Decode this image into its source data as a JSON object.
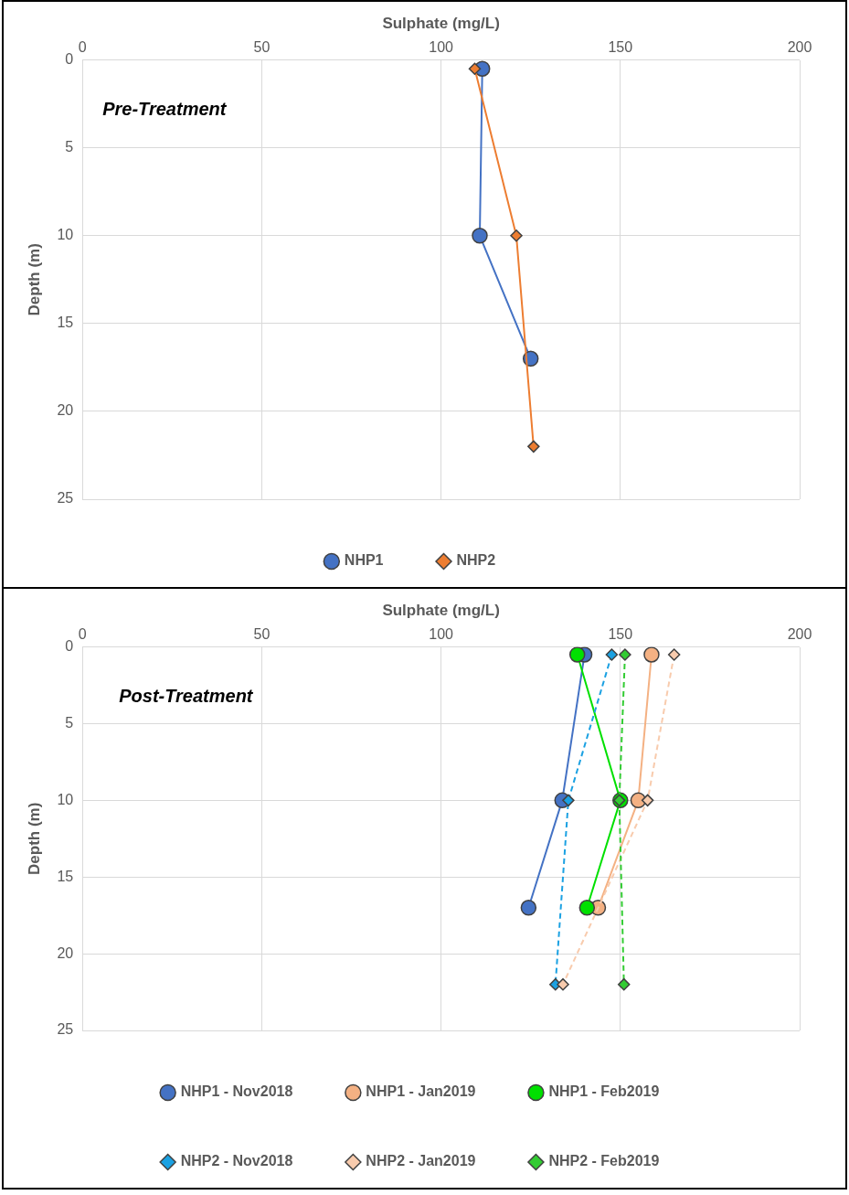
{
  "chart_data": [
    {
      "type": "line",
      "xlabel": "Sulphate (mg/L)",
      "ylabel": "Depth (m)",
      "xlim": [
        0,
        200
      ],
      "xticks": [
        0,
        50,
        100,
        150,
        200
      ],
      "ylim": [
        25,
        0
      ],
      "yticks": [
        0,
        5,
        10,
        15,
        20,
        25
      ],
      "grid": true,
      "legend": "bottom",
      "annotations": [
        "Pre-Treatment"
      ],
      "series": [
        {
          "name": "NHP1",
          "color": "#4472c4",
          "x": [
            111.5,
            110.8,
            125
          ],
          "values": [
            0.5,
            10,
            17
          ],
          "marker": "circle",
          "line_style": "solid"
        },
        {
          "name": "NHP2",
          "color": "#ed7d31",
          "x": [
            109.4,
            121,
            125.8
          ],
          "values": [
            0.5,
            10,
            22
          ],
          "marker": "diamond",
          "line_style": "solid"
        }
      ]
    },
    {
      "type": "line",
      "xlabel": "Sulphate (mg/L)",
      "ylabel": "Depth (m)",
      "xlim": [
        0,
        200
      ],
      "xticks": [
        0,
        50,
        100,
        150,
        200
      ],
      "ylim": [
        25,
        0
      ],
      "yticks": [
        0,
        5,
        10,
        15,
        20,
        25
      ],
      "grid": true,
      "legend": "bottom",
      "annotations": [
        "Post-Treatment"
      ],
      "series": [
        {
          "name": "NHP1 - Nov2018",
          "color": "#4472c4",
          "x": [
            140,
            133.8,
            124.4
          ],
          "values": [
            0.5,
            10,
            17
          ],
          "marker": "circle",
          "line_style": "solid"
        },
        {
          "name": "NHP1 - Jan2019",
          "color": "#f4b183",
          "x": [
            158.7,
            155,
            143.8
          ],
          "values": [
            0.5,
            10,
            17
          ],
          "marker": "circle",
          "line_style": "solid"
        },
        {
          "name": "NHP1 - Feb2019",
          "color": "#00e000",
          "x": [
            138,
            150,
            140.7
          ],
          "values": [
            0.5,
            10,
            17
          ],
          "marker": "circle",
          "line_style": "solid"
        },
        {
          "name": "NHP2 - Nov2018",
          "color": "#1ba1e2",
          "x": [
            147.6,
            135.5,
            131.9
          ],
          "values": [
            0.5,
            10,
            22
          ],
          "marker": "diamond",
          "line_style": "dashed"
        },
        {
          "name": "NHP2 - Jan2019",
          "color": "#f8cbad",
          "x": [
            165,
            157.6,
            134
          ],
          "values": [
            0.5,
            10,
            22
          ],
          "marker": "diamond",
          "line_style": "dashed"
        },
        {
          "name": "NHP2 - Feb2019",
          "color": "#33cc33",
          "x": [
            151.3,
            149.7,
            151
          ],
          "values": [
            0.5,
            10,
            22
          ],
          "marker": "diamond",
          "line_style": "dashed"
        }
      ]
    }
  ]
}
